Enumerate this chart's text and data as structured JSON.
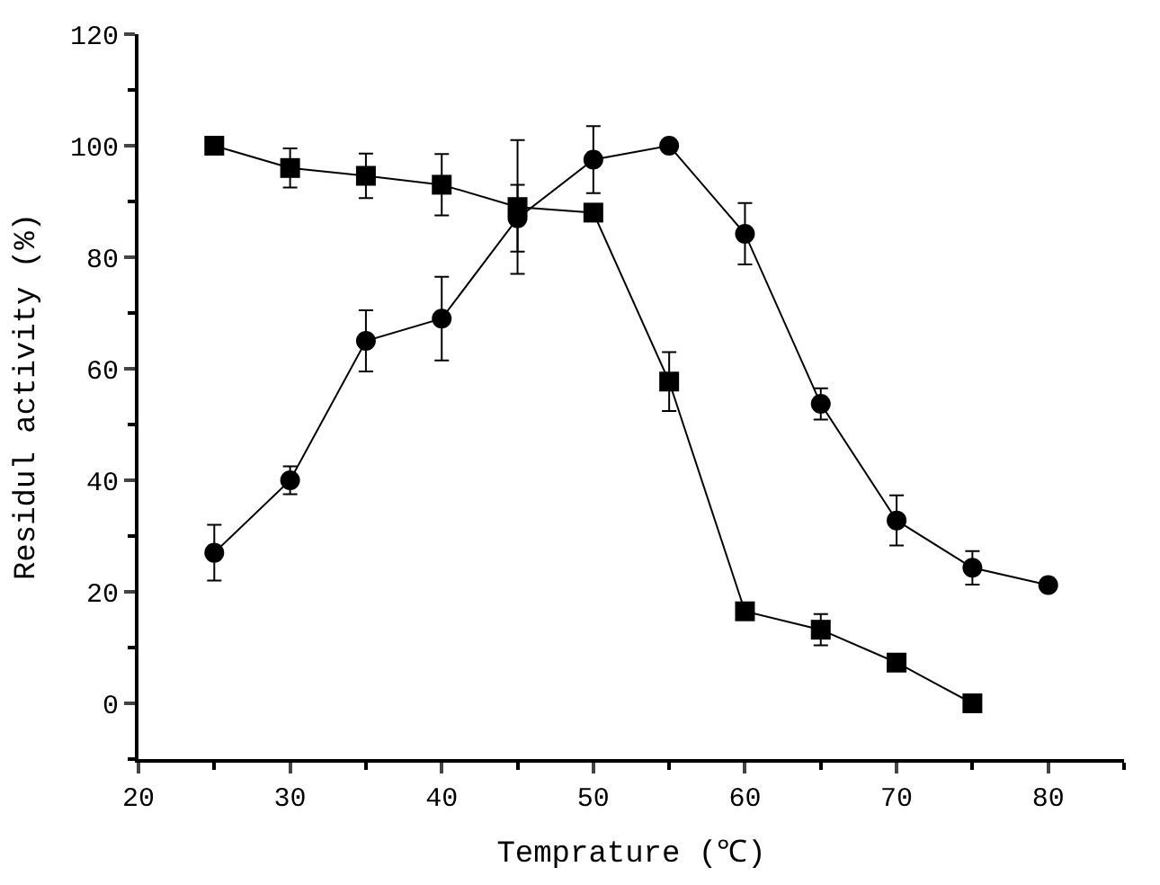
{
  "chart_data": {
    "type": "line",
    "xlabel": "Temprature (℃)",
    "ylabel": "Residul activity (%)",
    "xlim": [
      20,
      85
    ],
    "xticks": [
      20,
      30,
      40,
      50,
      60,
      70,
      80
    ],
    "ylim": [
      -10,
      120
    ],
    "yticks": [
      0,
      20,
      40,
      60,
      80,
      100,
      120
    ],
    "line_style": "solid",
    "series": [
      {
        "color": "#000000",
        "marker": "square",
        "x": [
          25,
          30,
          35,
          40,
          45,
          50,
          55,
          60,
          65,
          70,
          75
        ],
        "values": [
          100,
          96,
          94.6,
          93,
          89,
          88,
          57.7,
          16.5,
          13.2,
          7.3,
          0
        ],
        "errors": [
          null,
          3.5,
          4,
          5.5,
          12,
          null,
          5.3,
          null,
          2.8,
          null,
          null
        ]
      },
      {
        "color": "#000000",
        "marker": "circle",
        "x": [
          25,
          30,
          35,
          40,
          45,
          50,
          55,
          60,
          65,
          70,
          75,
          80
        ],
        "values": [
          27,
          40,
          65,
          69,
          87,
          97.5,
          100,
          84.2,
          53.7,
          32.8,
          24.3,
          21.2
        ],
        "errors": [
          5,
          2.5,
          5.5,
          7.5,
          6,
          6,
          null,
          5.5,
          2.8,
          4.5,
          3,
          null
        ]
      }
    ]
  }
}
